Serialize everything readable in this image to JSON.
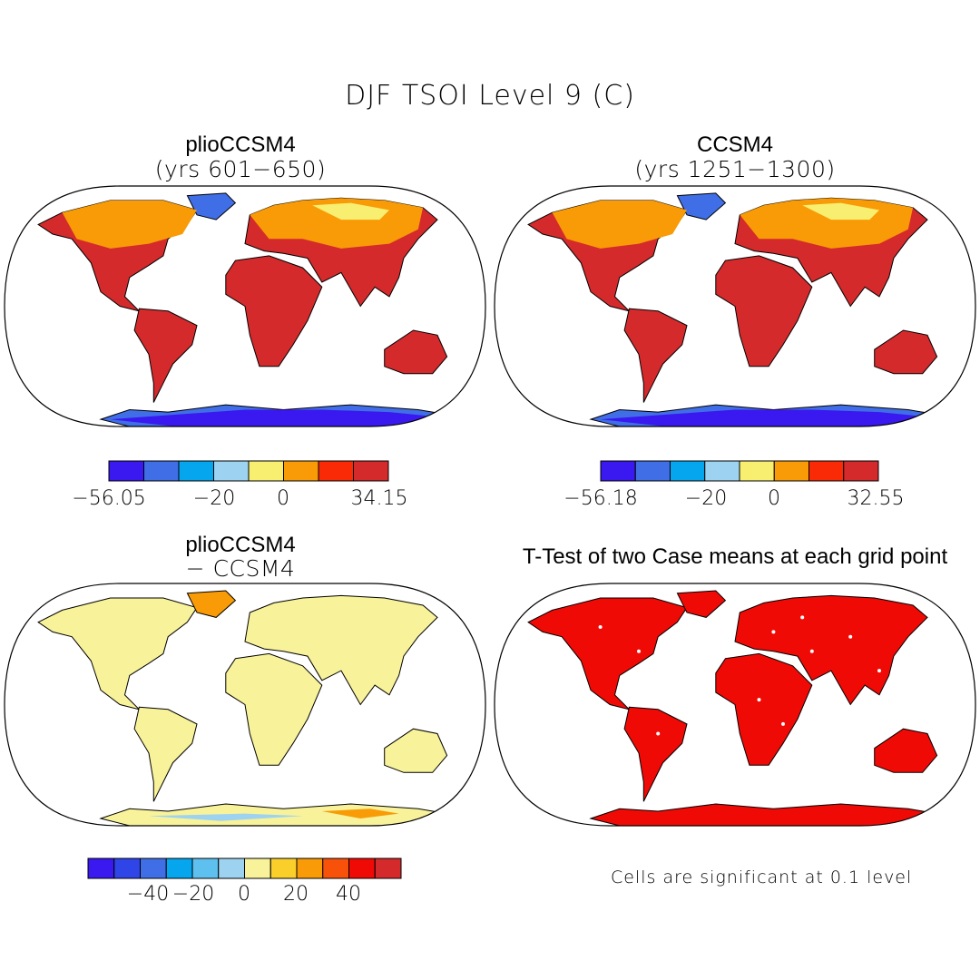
{
  "title": "DJF TSOI Level 9 (C)",
  "panels": [
    {
      "title": "plioCCSM4",
      "subtitle": "(yrs 601−650)",
      "theme": "warm"
    },
    {
      "title": "CCSM4",
      "subtitle": "(yrs 1251−1300)",
      "theme": "warm"
    },
    {
      "title": "plioCCSM4",
      "subtitle": "− CCSM4",
      "theme": "diff"
    },
    {
      "title": "T-Test of two Case means at each grid point",
      "subtitle": "",
      "theme": "ttest"
    }
  ],
  "colorbars": [
    {
      "colors": [
        "#3a18f0",
        "#3f6ee6",
        "#06a6ee",
        "#9dd3f0",
        "#f8ee70",
        "#f89b06",
        "#fa2a06",
        "#d42a2c"
      ],
      "labels": [
        "−56.05",
        "−20",
        "0",
        "34.15"
      ]
    },
    {
      "colors": [
        "#3a18f0",
        "#3f6ee6",
        "#06a6ee",
        "#9dd3f0",
        "#f8ee70",
        "#f89b06",
        "#fa2a06",
        "#d42a2c"
      ],
      "labels": [
        "−56.18",
        "−20",
        "0",
        "32.55"
      ]
    },
    {
      "colors": [
        "#3a18f0",
        "#2f45e8",
        "#3f6ee6",
        "#06a6ee",
        "#5ec0ee",
        "#9dd3f0",
        "#f8f29a",
        "#fbcf2a",
        "#f89b06",
        "#f8520a",
        "#f00a06",
        "#d42a2c"
      ],
      "labels": [
        "−40",
        "−20",
        "0",
        "20",
        "40"
      ]
    }
  ],
  "note": "Cells are significant at 0.1 level",
  "theme_colors": {
    "land_warm": "#d42a2c",
    "land_mid": "#f89b06",
    "land_cool": "#f8ee70",
    "ice": "#3f6ee6",
    "diff_land": "#f8f29a",
    "ttest_land": "#f00a06"
  }
}
